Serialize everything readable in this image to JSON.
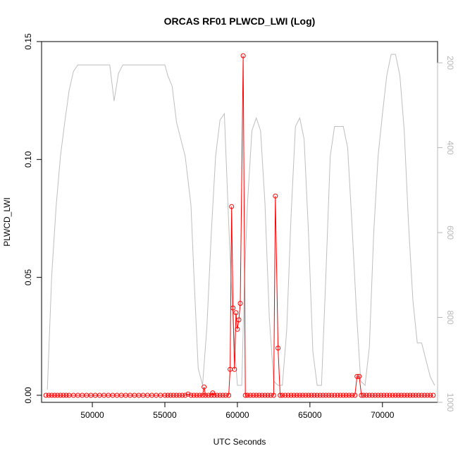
{
  "chart_data": {
    "type": "line",
    "title": "ORCAS RF01 PLWCD_LWI (Log)",
    "xlabel": "UTC Seconds",
    "ylabel": "PLWCD_LWI",
    "xlim": [
      46500,
      73800
    ],
    "ylim": [
      -0.003,
      0.15
    ],
    "x_ticks": [
      50000,
      55000,
      60000,
      65000,
      70000
    ],
    "y_ticks": [
      0.0,
      0.05,
      0.1,
      0.15
    ],
    "y_tick_labels": [
      "0.00",
      "0.05",
      "0.10",
      "0.15"
    ],
    "y2_lim": [
      1000,
      150
    ],
    "y2_ticks": [
      200,
      400,
      600,
      800,
      1000
    ],
    "grid": false,
    "colors": {
      "primary": "#ff0000",
      "secondary": "#bebebe"
    },
    "series": [
      {
        "role": "primary",
        "style": "line+points",
        "x": [
          46800,
          47000,
          47200,
          47400,
          47600,
          47800,
          48000,
          48200,
          48400,
          48700,
          49000,
          49300,
          49600,
          49900,
          50200,
          50500,
          50800,
          51100,
          51400,
          51700,
          52000,
          52300,
          52600,
          52900,
          53200,
          53500,
          53800,
          54100,
          54400,
          54700,
          55000,
          55200,
          55400,
          55600,
          55800,
          56000,
          56200,
          56400,
          56600,
          56800,
          57000,
          57200,
          57400,
          57600,
          57700,
          57800,
          58000,
          58200,
          58300,
          58400,
          58600,
          58800,
          59000,
          59200,
          59400,
          59500,
          59600,
          59700,
          59800,
          59900,
          60000,
          60100,
          60200,
          60400,
          60550,
          60700,
          60900,
          61100,
          61300,
          61500,
          61700,
          61900,
          62100,
          62300,
          62500,
          62620,
          62800,
          62950,
          63100,
          63300,
          63500,
          63700,
          63900,
          64100,
          64300,
          64500,
          64700,
          64900,
          65100,
          65300,
          65500,
          65700,
          65900,
          66100,
          66300,
          66500,
          66700,
          66900,
          67100,
          67300,
          67500,
          67700,
          67900,
          68100,
          68250,
          68400,
          68550,
          68700,
          68900,
          69100,
          69300,
          69500,
          69700,
          69900,
          70100,
          70300,
          70500,
          70700,
          70900,
          71100,
          71300,
          71500,
          71700,
          71900,
          72100,
          72300,
          72500,
          72700,
          72900,
          73100,
          73300,
          73500
        ],
        "y": [
          0,
          0,
          0,
          0,
          0,
          0,
          0,
          0,
          0,
          0,
          0,
          0,
          0,
          0,
          0,
          0,
          0,
          0,
          0,
          0,
          0,
          0,
          0,
          0,
          0,
          0,
          0,
          0,
          0,
          0,
          0,
          0,
          0,
          0,
          0,
          0,
          0,
          0,
          0.0005,
          0,
          0,
          0,
          0,
          0,
          0.0035,
          0,
          0,
          0,
          0.001,
          0,
          0,
          0,
          0,
          0,
          0,
          0.011,
          0.08,
          0.037,
          0.011,
          0.035,
          0.028,
          0.032,
          0.039,
          0.144,
          0,
          0,
          0,
          0,
          0,
          0,
          0,
          0,
          0,
          0,
          0,
          0.0845,
          0.02,
          0,
          0,
          0,
          0,
          0,
          0,
          0,
          0,
          0,
          0,
          0,
          0,
          0,
          0,
          0,
          0,
          0,
          0,
          0,
          0,
          0,
          0,
          0,
          0,
          0,
          0,
          0,
          0.008,
          0.008,
          0,
          0,
          0,
          0,
          0,
          0,
          0,
          0,
          0,
          0,
          0,
          0,
          0,
          0,
          0,
          0,
          0,
          0,
          0,
          0,
          0,
          0,
          0,
          0,
          0,
          0
        ]
      },
      {
        "role": "secondary",
        "style": "line",
        "x": [
          46900,
          47200,
          47500,
          47800,
          48100,
          48400,
          48700,
          49000,
          50000,
          51000,
          51200,
          51500,
          51800,
          52100,
          52400,
          52700,
          53000,
          54000,
          55000,
          55200,
          55500,
          55800,
          56100,
          56400,
          56800,
          57000,
          57300,
          57600,
          57900,
          58200,
          58500,
          58800,
          59100,
          59400,
          59700,
          60000,
          60300,
          60500,
          60700,
          61000,
          61300,
          61600,
          61900,
          62200,
          62500,
          62800,
          63100,
          63400,
          63700,
          64000,
          64300,
          64600,
          64900,
          65200,
          65500,
          65800,
          66100,
          66400,
          66700,
          67000,
          67300,
          67600,
          67900,
          68200,
          68500,
          68800,
          69100,
          69400,
          69700,
          70000,
          70300,
          70600,
          70900,
          71200,
          71500,
          71800,
          72100,
          72400,
          72700,
          73000,
          73300,
          73600
        ],
        "y": [
          970,
          700,
          540,
          420,
          340,
          265,
          220,
          205,
          205,
          205,
          205,
          290,
          225,
          205,
          205,
          205,
          205,
          205,
          205,
          230,
          255,
          340,
          380,
          420,
          535,
          700,
          920,
          960,
          820,
          600,
          420,
          335,
          320,
          580,
          810,
          960,
          960,
          700,
          530,
          360,
          330,
          360,
          530,
          800,
          950,
          960,
          960,
          830,
          560,
          350,
          330,
          380,
          600,
          880,
          960,
          960,
          700,
          420,
          350,
          350,
          350,
          400,
          580,
          780,
          950,
          960,
          870,
          600,
          420,
          320,
          230,
          180,
          180,
          230,
          360,
          580,
          760,
          860,
          860,
          900,
          940,
          960
        ]
      }
    ]
  }
}
